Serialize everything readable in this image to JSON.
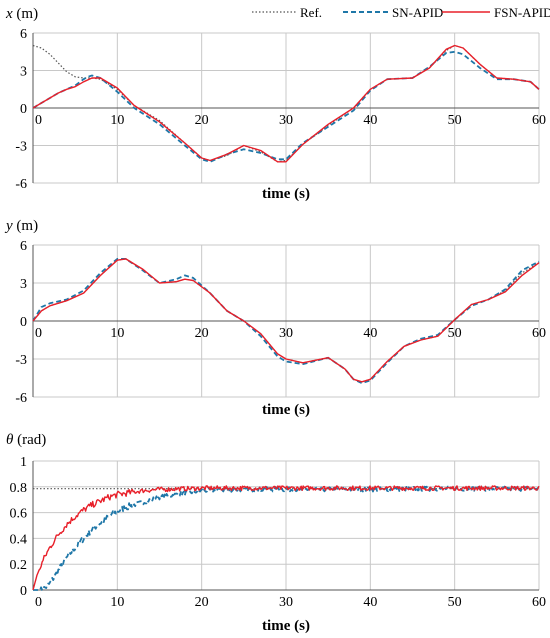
{
  "legend": {
    "position": "top-right",
    "entries": [
      {
        "label": "Ref.",
        "color": "#555555",
        "style": "dotted"
      },
      {
        "label": "SN-APID",
        "color": "#1f77a8",
        "style": "dashed"
      },
      {
        "label": "FSN-APID",
        "color": "#e8202a",
        "style": "solid"
      }
    ]
  },
  "chart_data": [
    {
      "type": "line",
      "ylabel_symbol": "x",
      "ylabel_unit": " (m)",
      "xlabel": "time (s)",
      "xlim": [
        0,
        60
      ],
      "ylim": [
        -6,
        6
      ],
      "xticks": [
        0,
        10,
        20,
        30,
        40,
        50,
        60
      ],
      "yticks": [
        6,
        3,
        0,
        -3,
        -6
      ],
      "grid": true,
      "series": [
        {
          "name": "Ref.",
          "x": [
            0,
            1,
            2,
            3,
            4,
            5,
            6,
            7,
            8,
            10,
            12,
            15,
            18,
            20,
            21,
            23,
            25,
            27,
            29,
            30,
            32,
            35,
            38,
            40,
            42,
            45,
            47,
            49,
            50,
            51,
            53,
            55,
            57,
            59,
            60
          ],
          "y": [
            5.0,
            4.8,
            4.3,
            3.6,
            2.9,
            2.5,
            2.4,
            2.4,
            2.3,
            1.5,
            0.2,
            -1.0,
            -2.8,
            -4.0,
            -4.2,
            -3.8,
            -3.0,
            -3.5,
            -4.3,
            -4.2,
            -2.9,
            -1.4,
            0.0,
            1.5,
            2.3,
            2.4,
            3.2,
            4.6,
            5.0,
            4.8,
            3.5,
            2.4,
            2.3,
            2.1,
            1.5
          ]
        },
        {
          "name": "SN-APID",
          "x": [
            0,
            1,
            2,
            3,
            4,
            5,
            6,
            6.5,
            7,
            8,
            10,
            12,
            15,
            18,
            20,
            21,
            23,
            25,
            27,
            29,
            30,
            32,
            35,
            38,
            40,
            42,
            45,
            47,
            49,
            50,
            51,
            53,
            55,
            57,
            59,
            60
          ],
          "y": [
            0,
            0.4,
            0.8,
            1.2,
            1.5,
            1.8,
            2.3,
            2.5,
            2.6,
            2.4,
            1.3,
            0.0,
            -1.3,
            -3.0,
            -4.1,
            -4.3,
            -3.7,
            -3.3,
            -3.6,
            -4.1,
            -4.1,
            -2.8,
            -1.5,
            -0.2,
            1.4,
            2.3,
            2.4,
            3.3,
            4.4,
            4.5,
            4.3,
            3.2,
            2.3,
            2.3,
            2.1,
            1.5
          ]
        },
        {
          "name": "FSN-APID",
          "x": [
            0,
            1,
            2,
            3,
            4,
            5,
            6,
            7,
            8,
            10,
            12,
            15,
            18,
            20,
            21,
            23,
            25,
            27,
            29,
            30,
            32,
            35,
            38,
            40,
            42,
            45,
            47,
            49,
            50,
            51,
            53,
            55,
            57,
            59,
            60
          ],
          "y": [
            0,
            0.4,
            0.8,
            1.2,
            1.5,
            1.7,
            2.1,
            2.4,
            2.4,
            1.6,
            0.2,
            -1.1,
            -2.8,
            -4.0,
            -4.2,
            -3.7,
            -3.0,
            -3.4,
            -4.3,
            -4.3,
            -2.9,
            -1.3,
            0.0,
            1.5,
            2.3,
            2.4,
            3.2,
            4.7,
            5.0,
            4.8,
            3.5,
            2.4,
            2.3,
            2.1,
            1.5
          ]
        }
      ]
    },
    {
      "type": "line",
      "ylabel_symbol": "y",
      "ylabel_unit": " (m)",
      "xlabel": "time (s)",
      "xlim": [
        0,
        60
      ],
      "ylim": [
        -6,
        6
      ],
      "xticks": [
        0,
        10,
        20,
        30,
        40,
        50,
        60
      ],
      "yticks": [
        6,
        3,
        0,
        -3,
        -6
      ],
      "grid": true,
      "series": [
        {
          "name": "Ref.",
          "x": [
            0,
            1,
            2,
            4,
            6,
            8,
            10,
            11,
            13,
            15,
            17,
            18,
            19,
            21,
            23,
            25,
            27,
            29,
            30,
            32,
            35,
            37,
            38,
            39,
            40,
            42,
            44,
            46,
            48,
            50,
            52,
            54,
            56,
            58,
            60
          ],
          "y": [
            0,
            0.8,
            1.2,
            1.6,
            2.2,
            3.6,
            4.8,
            4.9,
            4.1,
            3.0,
            3.1,
            3.3,
            3.2,
            2.2,
            0.8,
            0.0,
            -1.0,
            -2.6,
            -3.0,
            -3.3,
            -2.9,
            -3.8,
            -4.6,
            -4.8,
            -4.6,
            -3.2,
            -2.0,
            -1.5,
            -1.2,
            0.1,
            1.3,
            1.7,
            2.4,
            3.8,
            4.6
          ]
        },
        {
          "name": "SN-APID",
          "x": [
            0,
            1,
            2,
            4,
            6,
            8,
            10,
            11,
            13,
            15,
            17,
            18,
            19,
            21,
            23,
            25,
            27,
            29,
            30,
            32,
            35,
            37,
            38,
            39,
            40,
            42,
            44,
            46,
            48,
            50,
            52,
            54,
            56,
            58,
            60
          ],
          "y": [
            0,
            1.1,
            1.4,
            1.7,
            2.4,
            3.8,
            4.9,
            4.9,
            4.0,
            3.0,
            3.3,
            3.6,
            3.4,
            2.2,
            0.8,
            0.0,
            -1.2,
            -2.8,
            -3.2,
            -3.4,
            -2.9,
            -3.8,
            -4.6,
            -4.9,
            -4.7,
            -3.3,
            -2.0,
            -1.4,
            -1.1,
            0.1,
            1.2,
            1.7,
            2.5,
            4.0,
            4.7
          ]
        },
        {
          "name": "FSN-APID",
          "x": [
            0,
            1,
            2,
            4,
            6,
            8,
            10,
            11,
            13,
            15,
            17,
            18,
            19,
            21,
            23,
            25,
            27,
            29,
            30,
            32,
            35,
            37,
            38,
            39,
            40,
            42,
            44,
            46,
            48,
            50,
            52,
            54,
            56,
            58,
            60
          ],
          "y": [
            0,
            0.8,
            1.2,
            1.6,
            2.2,
            3.6,
            4.8,
            4.9,
            4.1,
            3.0,
            3.1,
            3.3,
            3.2,
            2.2,
            0.8,
            0.0,
            -1.0,
            -2.6,
            -3.0,
            -3.3,
            -2.9,
            -3.8,
            -4.6,
            -4.8,
            -4.6,
            -3.2,
            -2.0,
            -1.5,
            -1.2,
            0.1,
            1.3,
            1.7,
            2.3,
            3.6,
            4.6
          ]
        }
      ]
    },
    {
      "type": "line",
      "ylabel_symbol": "θ",
      "ylabel_unit": " (rad)",
      "xlabel": "time (s)",
      "xlim": [
        0,
        60
      ],
      "ylim": [
        0,
        1
      ],
      "xticks": [
        0,
        10,
        20,
        30,
        40,
        50,
        60
      ],
      "yticks": [
        1,
        0.8,
        0.6,
        0.4,
        0.2,
        0
      ],
      "ytick_labels": [
        "1",
        "0.8",
        "0.6",
        "0.4",
        "0.2",
        "0"
      ],
      "grid": true,
      "series": [
        {
          "name": "Ref.",
          "x": [
            0,
            60
          ],
          "y": [
            0.785,
            0.785
          ]
        },
        {
          "name": "SN-APID",
          "x": [
            0,
            1,
            1.5,
            2,
            3,
            4,
            5,
            6,
            7,
            8,
            9,
            10,
            11,
            12,
            13,
            14,
            15,
            16,
            17,
            18,
            19,
            20,
            22,
            25,
            30,
            35,
            40,
            45,
            50,
            55,
            60
          ],
          "y": [
            0,
            0.0,
            0.02,
            0.05,
            0.15,
            0.25,
            0.33,
            0.4,
            0.47,
            0.52,
            0.57,
            0.61,
            0.64,
            0.66,
            0.68,
            0.7,
            0.72,
            0.73,
            0.74,
            0.75,
            0.76,
            0.77,
            0.775,
            0.78,
            0.78,
            0.78,
            0.78,
            0.785,
            0.785,
            0.785,
            0.785
          ]
        },
        {
          "name": "FSN-APID",
          "x": [
            0,
            0.5,
            1,
            1.5,
            2,
            3,
            4,
            5,
            6,
            7,
            8,
            9,
            10,
            11,
            12,
            13,
            14,
            15,
            16,
            17,
            18,
            20,
            22,
            25,
            30,
            35,
            40,
            45,
            50,
            55,
            60
          ],
          "y": [
            0,
            0.12,
            0.2,
            0.27,
            0.33,
            0.43,
            0.51,
            0.57,
            0.62,
            0.66,
            0.69,
            0.72,
            0.74,
            0.75,
            0.76,
            0.77,
            0.775,
            0.78,
            0.78,
            0.785,
            0.785,
            0.79,
            0.79,
            0.79,
            0.79,
            0.79,
            0.79,
            0.79,
            0.79,
            0.79,
            0.79
          ]
        }
      ]
    }
  ]
}
